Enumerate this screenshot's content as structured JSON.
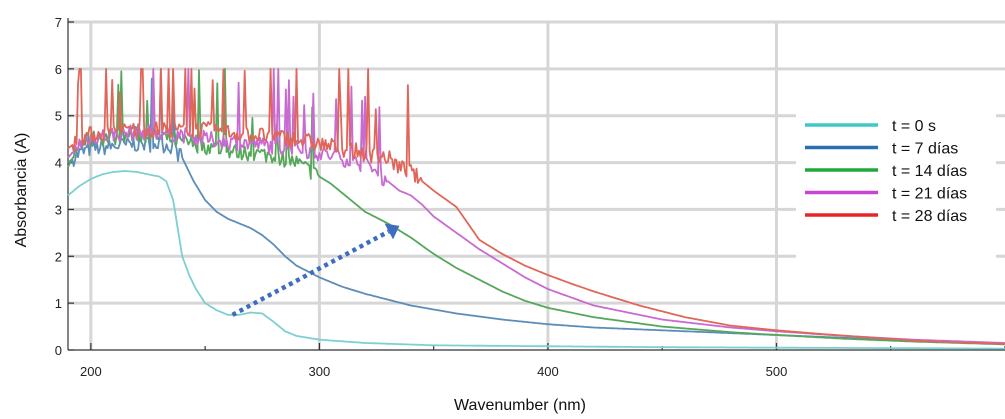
{
  "chart_data": {
    "type": "line",
    "xlabel": "Wavenumber (nm)",
    "ylabel": "Absorbancia (A)",
    "xlim": [
      190,
      600
    ],
    "ylim": [
      0,
      7
    ],
    "x_ticks": [
      200,
      300,
      400,
      500
    ],
    "y_ticks": [
      0,
      1,
      2,
      3,
      4,
      5,
      6,
      7
    ],
    "grid": true,
    "legend_position": "right",
    "series": [
      {
        "name": "t = 0 s",
        "color": "#7ecfcf",
        "points": [
          [
            190,
            3.3
          ],
          [
            195,
            3.5
          ],
          [
            200,
            3.65
          ],
          [
            205,
            3.75
          ],
          [
            210,
            3.8
          ],
          [
            215,
            3.82
          ],
          [
            220,
            3.8
          ],
          [
            225,
            3.75
          ],
          [
            230,
            3.7
          ],
          [
            233,
            3.6
          ],
          [
            236,
            3.2
          ],
          [
            238,
            2.6
          ],
          [
            240,
            2.0
          ],
          [
            243,
            1.6
          ],
          [
            246,
            1.3
          ],
          [
            250,
            1.0
          ],
          [
            255,
            0.85
          ],
          [
            260,
            0.75
          ],
          [
            265,
            0.75
          ],
          [
            270,
            0.8
          ],
          [
            275,
            0.78
          ],
          [
            280,
            0.6
          ],
          [
            285,
            0.4
          ],
          [
            290,
            0.3
          ],
          [
            300,
            0.22
          ],
          [
            320,
            0.15
          ],
          [
            350,
            0.1
          ],
          [
            400,
            0.08
          ],
          [
            450,
            0.06
          ],
          [
            500,
            0.05
          ],
          [
            550,
            0.04
          ],
          [
            600,
            0.03
          ]
        ]
      },
      {
        "name": "t = 7 días",
        "color": "#5b8db8",
        "points": [
          [
            190,
            4.0
          ],
          [
            195,
            4.2
          ],
          [
            200,
            4.3
          ],
          [
            210,
            4.35
          ],
          [
            220,
            4.4
          ],
          [
            230,
            4.4
          ],
          [
            235,
            4.35
          ],
          [
            240,
            4.1
          ],
          [
            245,
            3.6
          ],
          [
            250,
            3.2
          ],
          [
            255,
            2.95
          ],
          [
            260,
            2.8
          ],
          [
            265,
            2.7
          ],
          [
            270,
            2.6
          ],
          [
            275,
            2.45
          ],
          [
            280,
            2.25
          ],
          [
            285,
            2.0
          ],
          [
            290,
            1.8
          ],
          [
            300,
            1.55
          ],
          [
            310,
            1.35
          ],
          [
            320,
            1.2
          ],
          [
            340,
            0.95
          ],
          [
            360,
            0.78
          ],
          [
            380,
            0.65
          ],
          [
            400,
            0.55
          ],
          [
            420,
            0.48
          ],
          [
            450,
            0.42
          ],
          [
            480,
            0.36
          ],
          [
            500,
            0.32
          ],
          [
            530,
            0.26
          ],
          [
            560,
            0.2
          ],
          [
            600,
            0.14
          ]
        ]
      },
      {
        "name": "t = 14 días",
        "color": "#55a85a",
        "points": [
          [
            190,
            3.9
          ],
          [
            195,
            4.4
          ],
          [
            200,
            4.5
          ],
          [
            210,
            4.55
          ],
          [
            220,
            4.6
          ],
          [
            230,
            4.55
          ],
          [
            240,
            4.45
          ],
          [
            250,
            4.35
          ],
          [
            260,
            4.25
          ],
          [
            270,
            4.2
          ],
          [
            280,
            4.15
          ],
          [
            290,
            4.0
          ],
          [
            295,
            3.85
          ],
          [
            300,
            3.7
          ],
          [
            305,
            3.55
          ],
          [
            310,
            3.35
          ],
          [
            315,
            3.15
          ],
          [
            320,
            2.95
          ],
          [
            330,
            2.7
          ],
          [
            340,
            2.4
          ],
          [
            350,
            2.05
          ],
          [
            360,
            1.75
          ],
          [
            370,
            1.5
          ],
          [
            380,
            1.25
          ],
          [
            390,
            1.05
          ],
          [
            400,
            0.9
          ],
          [
            420,
            0.7
          ],
          [
            450,
            0.5
          ],
          [
            480,
            0.38
          ],
          [
            500,
            0.32
          ],
          [
            530,
            0.24
          ],
          [
            560,
            0.18
          ],
          [
            600,
            0.12
          ]
        ]
      },
      {
        "name": "t = 21 días",
        "color": "#c96ad0",
        "points": [
          [
            190,
            4.1
          ],
          [
            195,
            4.4
          ],
          [
            200,
            4.55
          ],
          [
            210,
            4.6
          ],
          [
            220,
            4.65
          ],
          [
            230,
            4.65
          ],
          [
            240,
            4.6
          ],
          [
            250,
            4.5
          ],
          [
            260,
            4.45
          ],
          [
            270,
            4.4
          ],
          [
            280,
            4.35
          ],
          [
            290,
            4.3
          ],
          [
            300,
            4.2
          ],
          [
            310,
            4.1
          ],
          [
            320,
            3.95
          ],
          [
            325,
            3.8
          ],
          [
            330,
            3.6
          ],
          [
            335,
            3.4
          ],
          [
            340,
            3.3
          ],
          [
            345,
            3.1
          ],
          [
            350,
            2.85
          ],
          [
            360,
            2.5
          ],
          [
            370,
            2.15
          ],
          [
            380,
            1.85
          ],
          [
            390,
            1.55
          ],
          [
            400,
            1.3
          ],
          [
            420,
            0.95
          ],
          [
            450,
            0.65
          ],
          [
            480,
            0.48
          ],
          [
            500,
            0.4
          ],
          [
            530,
            0.3
          ],
          [
            560,
            0.22
          ],
          [
            600,
            0.15
          ]
        ]
      },
      {
        "name": "t = 28 días",
        "color": "#e0665a",
        "points": [
          [
            190,
            4.3
          ],
          [
            195,
            4.5
          ],
          [
            200,
            4.6
          ],
          [
            210,
            4.65
          ],
          [
            220,
            4.7
          ],
          [
            230,
            4.7
          ],
          [
            240,
            4.7
          ],
          [
            250,
            4.7
          ],
          [
            260,
            4.65
          ],
          [
            270,
            4.6
          ],
          [
            280,
            4.55
          ],
          [
            290,
            4.5
          ],
          [
            300,
            4.4
          ],
          [
            310,
            4.3
          ],
          [
            320,
            4.2
          ],
          [
            330,
            4.1
          ],
          [
            335,
            3.9
          ],
          [
            340,
            3.8
          ],
          [
            345,
            3.6
          ],
          [
            350,
            3.4
          ],
          [
            360,
            3.05
          ],
          [
            370,
            2.35
          ],
          [
            380,
            2.05
          ],
          [
            390,
            1.8
          ],
          [
            400,
            1.6
          ],
          [
            410,
            1.42
          ],
          [
            420,
            1.25
          ],
          [
            440,
            0.95
          ],
          [
            460,
            0.7
          ],
          [
            480,
            0.52
          ],
          [
            500,
            0.42
          ],
          [
            520,
            0.34
          ],
          [
            540,
            0.27
          ],
          [
            560,
            0.2
          ],
          [
            580,
            0.16
          ],
          [
            600,
            0.13
          ]
        ]
      }
    ],
    "annotation": {
      "type": "dotted-arrow",
      "from": [
        262,
        0.75
      ],
      "to": [
        335,
        2.65
      ],
      "color": "#3f6dc0"
    }
  }
}
